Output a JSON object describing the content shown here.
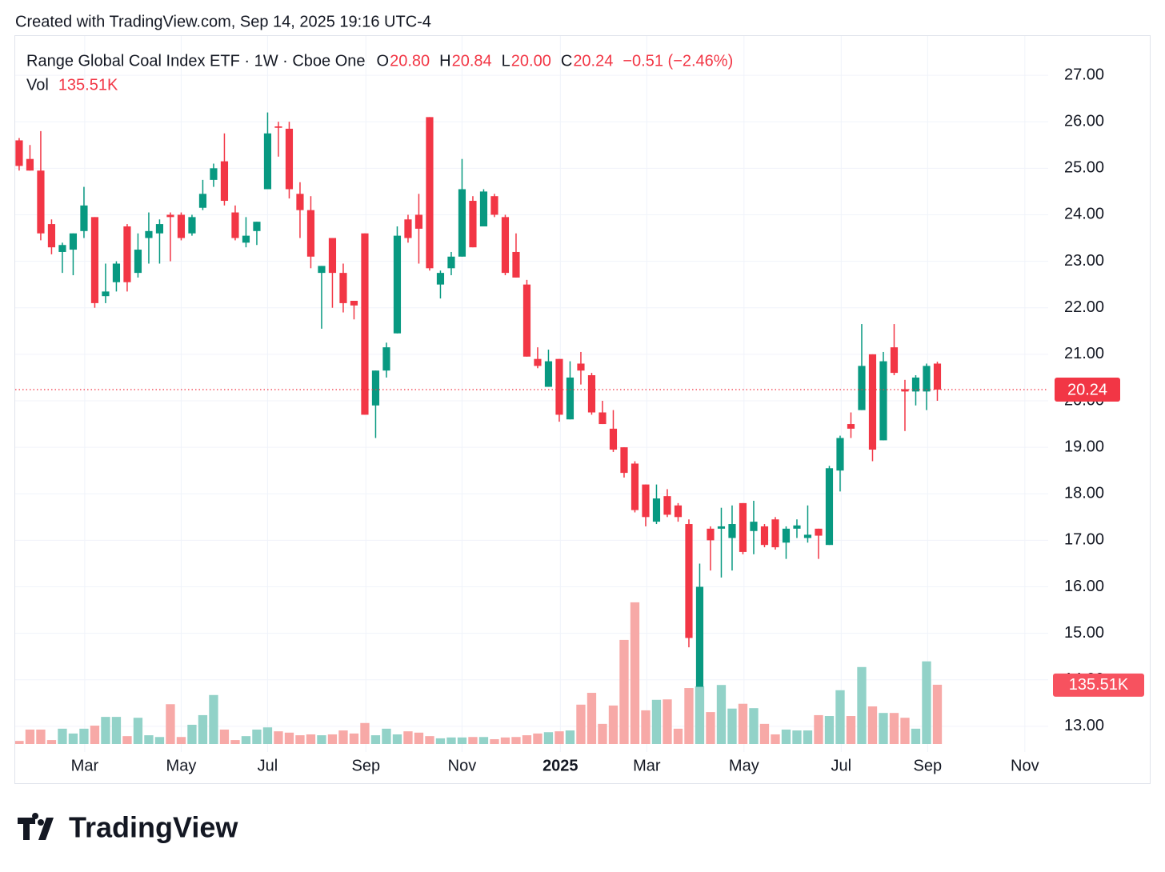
{
  "chart_data": {
    "type": "candlestick",
    "created_note": "Created with TradingView.com, Sep 14, 2025 19:16 UTC-4",
    "title": "Range Global Coal Index ETF · 1W · Cboe One",
    "legend_keys": [
      "O",
      "H",
      "L",
      "C"
    ],
    "legend_values": [
      20.8,
      20.84,
      20.0,
      20.24
    ],
    "legend_value_labels": [
      "20.80",
      "20.84",
      "20.00",
      "20.24"
    ],
    "change_label": "−0.51 (−2.46%)",
    "volume_key": "Vol",
    "volume_label": "135.51K",
    "last_price_label": "20.24",
    "logo": "TradingView",
    "up_color": "#089981",
    "down_color": "#f23645",
    "up_volume_color": "#92d2c8",
    "down_volume_color": "#f7a9a7",
    "grid": true,
    "xlim": [
      -0.44,
      95.26
    ],
    "xticks": [
      {
        "value": 6.07,
        "label": "Mar"
      },
      {
        "value": 15,
        "label": "May"
      },
      {
        "value": 23,
        "label": "Jul"
      },
      {
        "value": 32.1,
        "label": "Sep"
      },
      {
        "value": 41,
        "label": "Nov"
      },
      {
        "value": 50.1,
        "label": "2025"
      },
      {
        "value": 58.1,
        "label": "Mar"
      },
      {
        "value": 67.1,
        "label": "May"
      },
      {
        "value": 76.1,
        "label": "Jul"
      },
      {
        "value": 84.1,
        "label": "Sep"
      },
      {
        "value": 93.1,
        "label": "Nov"
      }
    ],
    "ylim": [
      12.62,
      27.93
    ],
    "yticks": [
      {
        "value": 13,
        "label": "13.00"
      },
      {
        "value": 14,
        "label": "14.00"
      },
      {
        "value": 15,
        "label": "15.00"
      },
      {
        "value": 16,
        "label": "16.00"
      },
      {
        "value": 17,
        "label": "17.00"
      },
      {
        "value": 18,
        "label": "18.00"
      },
      {
        "value": 19,
        "label": "19.00"
      },
      {
        "value": 20,
        "label": "20.00"
      },
      {
        "value": 21,
        "label": "21.00"
      },
      {
        "value": 22,
        "label": "22.00"
      },
      {
        "value": 23,
        "label": "23.00"
      },
      {
        "value": 24,
        "label": "24.00"
      },
      {
        "value": 25,
        "label": "25.00"
      },
      {
        "value": 26,
        "label": "26.00"
      },
      {
        "value": 27,
        "label": "27.00"
      }
    ],
    "vlim": [
      0,
      622
    ],
    "open": [
      25.6,
      25.2,
      24.95,
      23.8,
      23.2,
      23.25,
      23.65,
      23.95,
      22.25,
      22.55,
      23.75,
      22.75,
      23.5,
      23.6,
      24.0,
      24.0,
      23.6,
      24.15,
      24.75,
      25.15,
      24.05,
      23.4,
      23.65,
      24.55,
      25.9,
      25.85,
      24.45,
      24.1,
      22.75,
      23.5,
      22.75,
      22.15,
      23.6,
      19.9,
      20.65,
      21.45,
      23.9,
      24.0,
      26.1,
      22.5,
      22.85,
      23.1,
      24.3,
      23.75,
      24.4,
      23.95,
      23.2,
      22.5,
      20.9,
      20.3,
      20.9,
      19.6,
      20.8,
      20.55,
      19.75,
      19.4,
      19.0,
      18.65,
      18.2,
      17.4,
      17.95,
      17.75,
      17.35,
      13.85,
      17.25,
      17.25,
      17.05,
      17.8,
      17.2,
      17.3,
      17.45,
      16.95,
      17.25,
      17.05,
      17.25,
      16.9,
      18.5,
      19.5,
      19.8,
      21.0,
      19.15,
      21.15,
      20.25,
      20.2,
      20.2,
      20.8
    ],
    "high": [
      25.65,
      25.5,
      25.8,
      23.9,
      23.4,
      23.6,
      24.6,
      23.95,
      22.95,
      23.0,
      23.8,
      23.6,
      24.05,
      23.9,
      24.05,
      24.05,
      24.0,
      24.75,
      25.1,
      25.75,
      24.2,
      23.95,
      23.85,
      26.2,
      26.0,
      26.0,
      24.7,
      24.4,
      22.9,
      23.5,
      22.95,
      22.15,
      23.6,
      20.65,
      21.25,
      23.75,
      24.0,
      24.45,
      26.1,
      22.8,
      23.2,
      25.2,
      24.4,
      24.55,
      24.45,
      24.0,
      23.6,
      22.6,
      21.15,
      21.1,
      20.9,
      20.85,
      21.05,
      20.6,
      20.0,
      19.8,
      19.0,
      18.7,
      18.2,
      18.2,
      18.1,
      17.8,
      17.45,
      16.5,
      17.3,
      17.7,
      17.75,
      17.8,
      17.85,
      17.35,
      17.5,
      17.3,
      17.45,
      17.75,
      17.25,
      18.6,
      19.25,
      19.75,
      21.65,
      21.0,
      21.05,
      21.65,
      20.45,
      20.55,
      20.8,
      20.84
    ],
    "low": [
      24.95,
      24.95,
      23.45,
      23.15,
      22.75,
      22.7,
      23.5,
      22.0,
      22.1,
      22.35,
      22.35,
      22.65,
      22.95,
      22.95,
      23.0,
      23.45,
      23.55,
      24.1,
      24.6,
      24.2,
      23.45,
      23.3,
      23.35,
      24.55,
      25.25,
      24.35,
      23.5,
      22.85,
      21.55,
      22.0,
      21.9,
      21.75,
      19.7,
      19.2,
      20.5,
      21.45,
      23.4,
      22.95,
      22.8,
      22.2,
      22.7,
      23.1,
      23.3,
      23.75,
      23.95,
      22.7,
      22.65,
      20.95,
      20.7,
      20.3,
      19.55,
      19.6,
      20.35,
      19.7,
      19.5,
      18.9,
      18.35,
      17.6,
      17.3,
      17.35,
      17.5,
      17.4,
      14.7,
      13.85,
      16.35,
      16.2,
      16.35,
      16.7,
      16.7,
      16.85,
      16.8,
      16.6,
      17.05,
      16.95,
      16.6,
      16.9,
      18.05,
      19.2,
      19.8,
      18.7,
      19.15,
      20.55,
      19.35,
      19.9,
      19.8,
      20.0
    ],
    "close": [
      25.05,
      24.95,
      23.6,
      23.3,
      23.35,
      23.6,
      24.2,
      22.1,
      22.35,
      22.95,
      22.55,
      23.25,
      23.65,
      23.8,
      23.95,
      23.5,
      23.95,
      24.45,
      25.0,
      24.3,
      23.5,
      23.55,
      23.85,
      25.75,
      25.87,
      24.55,
      24.1,
      23.1,
      22.9,
      22.75,
      22.1,
      22.05,
      19.7,
      20.65,
      21.15,
      23.55,
      23.5,
      23.7,
      22.85,
      22.75,
      23.1,
      24.55,
      23.3,
      24.5,
      24.0,
      22.75,
      22.65,
      20.95,
      20.75,
      20.85,
      19.7,
      20.5,
      20.65,
      19.75,
      19.5,
      18.95,
      18.45,
      17.65,
      17.5,
      17.9,
      17.55,
      17.5,
      14.9,
      16.0,
      17.0,
      17.3,
      17.35,
      16.75,
      17.4,
      16.9,
      16.85,
      17.25,
      17.32,
      17.12,
      17.1,
      18.55,
      19.2,
      19.4,
      20.75,
      18.95,
      20.85,
      20.6,
      20.2,
      20.5,
      20.75,
      20.24
    ],
    "volume": [
      7,
      33,
      33,
      9,
      35,
      24,
      35,
      42,
      62,
      62,
      18,
      60,
      20,
      16,
      91,
      16,
      44,
      66,
      112,
      33,
      9,
      18,
      33,
      38,
      29,
      26,
      20,
      22,
      20,
      22,
      31,
      24,
      48,
      20,
      35,
      22,
      29,
      26,
      18,
      13,
      15,
      15,
      16,
      16,
      11,
      15,
      16,
      20,
      24,
      27,
      29,
      31,
      90,
      117,
      46,
      88,
      238,
      324,
      77,
      101,
      102,
      35,
      128,
      132,
      73,
      135,
      81,
      92,
      82,
      46,
      22,
      33,
      31,
      31,
      66,
      64,
      123,
      64,
      176,
      86,
      71,
      71,
      60,
      35,
      189,
      135.51
    ]
  }
}
